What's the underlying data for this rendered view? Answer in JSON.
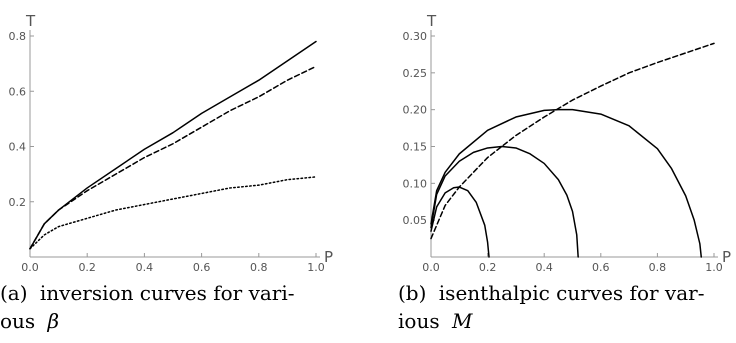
{
  "chart_data": [
    {
      "type": "line",
      "xlabel": "P",
      "ylabel": "T",
      "xlim": [
        0,
        1.0
      ],
      "ylim": [
        0,
        0.8
      ],
      "xticks": [
        "0.0",
        "0.2",
        "0.4",
        "0.6",
        "0.8",
        "1.0"
      ],
      "yticks": [
        "0.2",
        "0.4",
        "0.6",
        "0.8"
      ],
      "grid": false,
      "caption": {
        "label": "(a)",
        "line1": "inversion curves for vari-",
        "line2": "ous",
        "symbol": "β"
      },
      "series": [
        {
          "style": "solid",
          "x": [
            0,
            0.05,
            0.1,
            0.2,
            0.3,
            0.4,
            0.5,
            0.6,
            0.7,
            0.8,
            0.9,
            1.0
          ],
          "y": [
            0.03,
            0.12,
            0.17,
            0.25,
            0.32,
            0.39,
            0.45,
            0.52,
            0.58,
            0.64,
            0.71,
            0.78
          ]
        },
        {
          "style": "dashed",
          "x": [
            0,
            0.05,
            0.1,
            0.2,
            0.3,
            0.4,
            0.5,
            0.6,
            0.7,
            0.8,
            0.9,
            1.0
          ],
          "y": [
            0.03,
            0.12,
            0.17,
            0.24,
            0.3,
            0.36,
            0.41,
            0.47,
            0.53,
            0.58,
            0.64,
            0.69
          ]
        },
        {
          "style": "dotted",
          "x": [
            0,
            0.05,
            0.1,
            0.2,
            0.3,
            0.4,
            0.5,
            0.6,
            0.7,
            0.8,
            0.9,
            1.0
          ],
          "y": [
            0.03,
            0.08,
            0.11,
            0.14,
            0.17,
            0.19,
            0.21,
            0.23,
            0.25,
            0.26,
            0.28,
            0.29
          ]
        }
      ]
    },
    {
      "type": "line",
      "xlabel": "P",
      "ylabel": "T",
      "xlim": [
        0,
        1.0
      ],
      "ylim": [
        0,
        0.3
      ],
      "xticks": [
        "0.0",
        "0.2",
        "0.4",
        "0.6",
        "0.8",
        "1.0"
      ],
      "yticks": [
        "0.05",
        "0.10",
        "0.15",
        "0.20",
        "0.25",
        "0.30"
      ],
      "grid": false,
      "caption": {
        "label": "(b)",
        "line1": "isenthalpic curves for var-",
        "line2": "ious",
        "symbol": "M"
      },
      "series": [
        {
          "style": "solid",
          "x": [
            0,
            0.02,
            0.05,
            0.08,
            0.1,
            0.13,
            0.16,
            0.19,
            0.2,
            0.205
          ],
          "y": [
            0.035,
            0.068,
            0.087,
            0.094,
            0.095,
            0.09,
            0.074,
            0.043,
            0.02,
            0
          ]
        },
        {
          "style": "solid",
          "x": [
            0,
            0.02,
            0.05,
            0.1,
            0.15,
            0.2,
            0.25,
            0.3,
            0.35,
            0.4,
            0.45,
            0.48,
            0.5,
            0.515,
            0.52
          ],
          "y": [
            0.04,
            0.085,
            0.11,
            0.13,
            0.142,
            0.148,
            0.15,
            0.148,
            0.14,
            0.127,
            0.105,
            0.084,
            0.062,
            0.03,
            0
          ]
        },
        {
          "style": "solid",
          "x": [
            0,
            0.02,
            0.05,
            0.1,
            0.2,
            0.3,
            0.4,
            0.45,
            0.5,
            0.6,
            0.7,
            0.8,
            0.85,
            0.9,
            0.93,
            0.95,
            0.955
          ],
          "y": [
            0.045,
            0.09,
            0.115,
            0.14,
            0.172,
            0.19,
            0.199,
            0.2,
            0.2,
            0.194,
            0.178,
            0.147,
            0.12,
            0.083,
            0.05,
            0.018,
            0
          ]
        },
        {
          "style": "dashed",
          "x": [
            0,
            0.05,
            0.1,
            0.2,
            0.3,
            0.4,
            0.5,
            0.6,
            0.7,
            0.8,
            0.9,
            1.0
          ],
          "y": [
            0.025,
            0.07,
            0.095,
            0.135,
            0.165,
            0.19,
            0.213,
            0.232,
            0.25,
            0.264,
            0.277,
            0.29
          ]
        }
      ]
    }
  ]
}
